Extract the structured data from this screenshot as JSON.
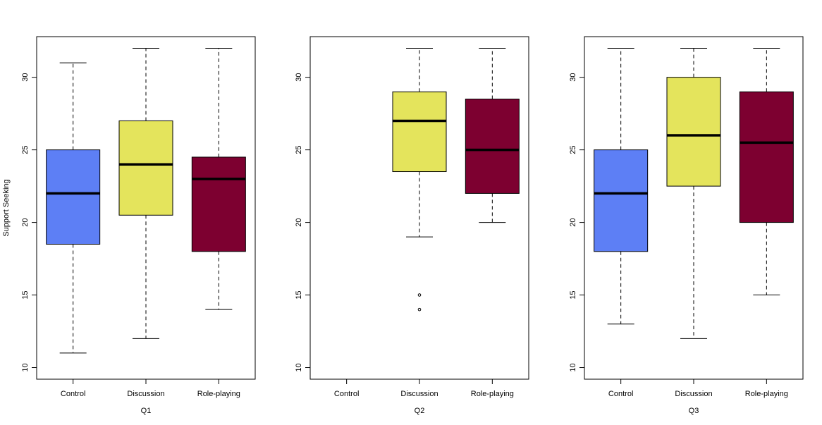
{
  "chart_data": {
    "type": "boxplot",
    "ylabel": "Support Seeking",
    "ylim": [
      9.2,
      32.8
    ],
    "y_ticks": [
      10,
      15,
      20,
      25,
      30
    ],
    "categories": [
      "Control",
      "Discussion",
      "Role-playing"
    ],
    "colors": {
      "Control": "#5d7ff5",
      "Discussion": "#e4e45c",
      "Role-playing": "#7d0030"
    },
    "panels": [
      {
        "xlabel": "Q1",
        "boxes": [
          {
            "category": "Control",
            "min": 11,
            "q1": 18.5,
            "median": 22,
            "q3": 25,
            "max": 31,
            "outliers": []
          },
          {
            "category": "Discussion",
            "min": 12,
            "q1": 20.5,
            "median": 24,
            "q3": 27,
            "max": 32,
            "outliers": []
          },
          {
            "category": "Role-playing",
            "min": 14,
            "q1": 18,
            "median": 23,
            "q3": 24.5,
            "max": 32,
            "outliers": []
          }
        ]
      },
      {
        "xlabel": "Q2",
        "boxes": [
          {
            "category": "Control",
            "empty": true
          },
          {
            "category": "Discussion",
            "min": 19,
            "q1": 23.5,
            "median": 27,
            "q3": 29,
            "max": 32,
            "outliers": [
              15,
              14
            ]
          },
          {
            "category": "Role-playing",
            "min": 20,
            "q1": 22,
            "median": 25,
            "q3": 28.5,
            "max": 32,
            "outliers": []
          }
        ]
      },
      {
        "xlabel": "Q3",
        "boxes": [
          {
            "category": "Control",
            "min": 13,
            "q1": 18,
            "median": 22,
            "q3": 25,
            "max": 32,
            "outliers": []
          },
          {
            "category": "Discussion",
            "min": 12,
            "q1": 22.5,
            "median": 26,
            "q3": 30,
            "max": 32,
            "outliers": []
          },
          {
            "category": "Role-playing",
            "min": 15,
            "q1": 20,
            "median": 25.5,
            "q3": 29,
            "max": 32,
            "outliers": []
          }
        ]
      }
    ]
  }
}
